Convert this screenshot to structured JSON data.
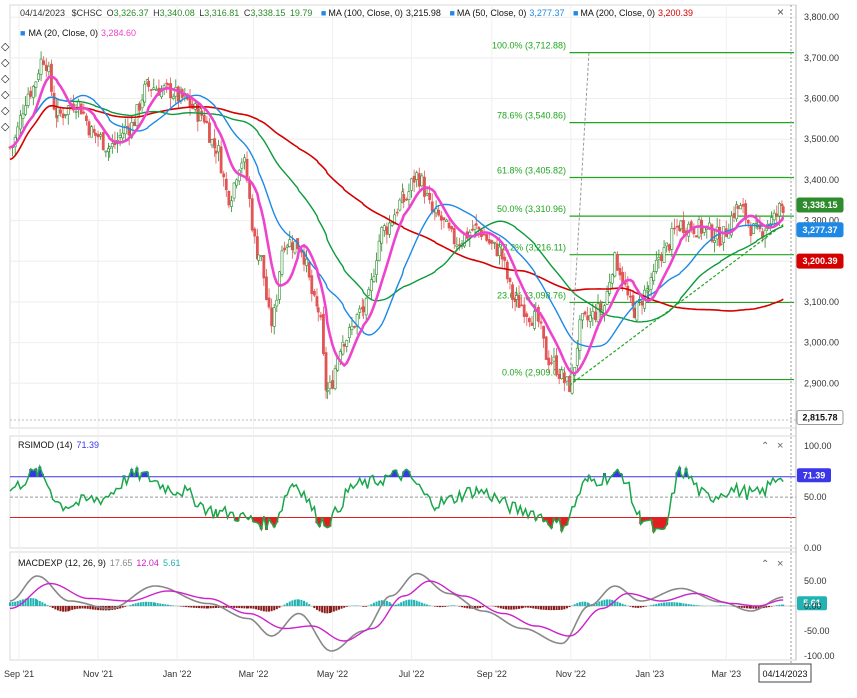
{
  "header": {
    "date": "04/14/2023",
    "symbol": "$CHSC",
    "ohlc": {
      "open_label": "O",
      "open": "3,326.37",
      "high_label": "H",
      "high": "3,340.08",
      "low_label": "L",
      "low": "3,316.81",
      "close_label": "C",
      "close": "3,338.15",
      "change": "19.79"
    },
    "ma_legends": [
      {
        "label": "MA (100, Close, 0)",
        "value": "3,215.98",
        "color": "#111111"
      },
      {
        "label": "MA (50, Close, 0)",
        "value": "3,277.37",
        "color": "#1e88e5"
      },
      {
        "label": "MA (200, Close, 0)",
        "value": "3,200.39",
        "color": "#d50000"
      },
      {
        "label": "MA (20, Close, 0)",
        "value": "3,284.60",
        "color": "#ee44cc"
      }
    ],
    "close_icon": "close-icon"
  },
  "toolbar": {
    "icons": [
      "draw-icon",
      "draw-icon",
      "draw-icon",
      "draw-icon",
      "draw-icon",
      "draw-icon"
    ]
  },
  "colors": {
    "price_up": "#2e8b2e",
    "price_down": "#e25555",
    "ma20": "#ee44cc",
    "ma50": "#1e88e5",
    "ma100": "#0a9a3a",
    "ma200": "#d50000",
    "fib": "#1fa51f",
    "rsi_line": "#1aa64a",
    "rsi_over": "#3b37e8",
    "rsi_under": "#e02020",
    "macd_line": "#888888",
    "signal_line": "#cc22cc",
    "hist_pos": "#21b3b3",
    "hist_neg": "#8b1a1a"
  },
  "chart_data": [
    {
      "type": "candlestick",
      "name": "price",
      "ylim": [
        2790,
        3830
      ],
      "yticks": [
        2900,
        3000,
        3100,
        3200,
        3300,
        3400,
        3500,
        3600,
        3700,
        3800
      ],
      "ytick_labels": [
        "2,900.00",
        "3,000.00",
        "3,100.00",
        "3,200.00",
        "3,300.00",
        "3,400.00",
        "3,500.00",
        "3,600.00",
        "3,700.00",
        "3,800.00"
      ],
      "xlim": [
        "2021-08-25",
        "2023-04-20"
      ],
      "xticks": [
        "2021-09-01",
        "2021-11-01",
        "2022-01-01",
        "2022-03-01",
        "2022-05-01",
        "2022-07-01",
        "2022-09-01",
        "2022-11-01",
        "2023-01-01",
        "2023-03-01"
      ],
      "xtick_labels": [
        "Sep '21",
        "Nov '21",
        "Jan '22",
        "Mar '22",
        "May '22",
        "Jul '22",
        "Sep '22",
        "Nov '22",
        "Jan '23",
        "Mar '23"
      ],
      "close": [
        [
          "2021-08-25",
          3480
        ],
        [
          "2021-09-10",
          3620
        ],
        [
          "2021-09-20",
          3700
        ],
        [
          "2021-10-01",
          3560
        ],
        [
          "2021-10-15",
          3590
        ],
        [
          "2021-10-30",
          3510
        ],
        [
          "2021-11-10",
          3480
        ],
        [
          "2021-11-25",
          3530
        ],
        [
          "2021-12-10",
          3630
        ],
        [
          "2021-12-25",
          3620
        ],
        [
          "2022-01-05",
          3600
        ],
        [
          "2022-01-20",
          3560
        ],
        [
          "2022-01-31",
          3480
        ],
        [
          "2022-02-10",
          3360
        ],
        [
          "2022-02-20",
          3450
        ],
        [
          "2022-03-05",
          3220
        ],
        [
          "2022-03-15",
          3050
        ],
        [
          "2022-03-25",
          3250
        ],
        [
          "2022-04-05",
          3240
        ],
        [
          "2022-04-20",
          3080
        ],
        [
          "2022-04-27",
          2880
        ],
        [
          "2022-05-10",
          3010
        ],
        [
          "2022-05-25",
          3080
        ],
        [
          "2022-06-10",
          3280
        ],
        [
          "2022-06-25",
          3350
        ],
        [
          "2022-07-05",
          3410
        ],
        [
          "2022-07-20",
          3310
        ],
        [
          "2022-08-05",
          3250
        ],
        [
          "2022-08-20",
          3280
        ],
        [
          "2022-09-05",
          3230
        ],
        [
          "2022-09-20",
          3100
        ],
        [
          "2022-10-05",
          3060
        ],
        [
          "2022-10-15",
          2960
        ],
        [
          "2022-10-31",
          2895
        ],
        [
          "2022-11-10",
          3050
        ],
        [
          "2022-11-25",
          3080
        ],
        [
          "2022-12-05",
          3200
        ],
        [
          "2022-12-20",
          3080
        ],
        [
          "2022-12-31",
          3130
        ],
        [
          "2023-01-10",
          3220
        ],
        [
          "2023-01-25",
          3290
        ],
        [
          "2023-02-10",
          3280
        ],
        [
          "2023-02-25",
          3260
        ],
        [
          "2023-03-10",
          3330
        ],
        [
          "2023-03-25",
          3270
        ],
        [
          "2023-04-05",
          3300
        ],
        [
          "2023-04-14",
          3338
        ]
      ],
      "price_tags": [
        {
          "value": "3,338.15",
          "color": "#2e8b2e"
        },
        {
          "value": "3,277.37",
          "color": "#1e88e5"
        },
        {
          "value": "3,200.39",
          "color": "#d50000"
        },
        {
          "value": "2,815.78",
          "color": "#ffffff"
        }
      ],
      "fibonacci": [
        {
          "label": "100.0% (3,712.88)",
          "value": 3712.88
        },
        {
          "label": "78.6% (3,540.86)",
          "value": 3540.86
        },
        {
          "label": "61.8% (3,405.82)",
          "value": 3405.82
        },
        {
          "label": "50.0% (3,310.96)",
          "value": 3310.96
        },
        {
          "label": "38.2% (3,216.11)",
          "value": 3216.11
        },
        {
          "label": "23.6% (3,098.76)",
          "value": 3098.76
        },
        {
          "label": "0.0% (2,909.05)",
          "value": 2909.05
        }
      ]
    },
    {
      "type": "line",
      "name": "RSIMOD (14)",
      "value_label": "71.39",
      "ylim": [
        0,
        110
      ],
      "yticks": [
        0,
        50,
        100
      ],
      "ytick_labels": [
        "0.00",
        "50.00",
        "100.00"
      ],
      "levels": [
        70,
        30
      ],
      "series": [
        [
          "2021-08-25",
          58
        ],
        [
          "2021-09-15",
          74
        ],
        [
          "2021-10-05",
          42
        ],
        [
          "2021-11-01",
          48
        ],
        [
          "2021-12-01",
          72
        ],
        [
          "2022-01-01",
          57
        ],
        [
          "2022-02-01",
          35
        ],
        [
          "2022-03-15",
          24
        ],
        [
          "2022-04-01",
          63
        ],
        [
          "2022-04-25",
          25
        ],
        [
          "2022-05-20",
          62
        ],
        [
          "2022-06-25",
          72
        ],
        [
          "2022-07-20",
          44
        ],
        [
          "2022-08-20",
          56
        ],
        [
          "2022-09-25",
          37
        ],
        [
          "2022-10-25",
          23
        ],
        [
          "2022-11-15",
          66
        ],
        [
          "2022-12-10",
          72
        ],
        [
          "2022-12-25",
          30
        ],
        [
          "2023-01-10",
          13
        ],
        [
          "2023-01-25",
          75
        ],
        [
          "2023-02-15",
          50
        ],
        [
          "2023-03-05",
          57
        ],
        [
          "2023-03-25",
          53
        ],
        [
          "2023-04-14",
          71.39
        ]
      ]
    },
    {
      "type": "line",
      "name": "MACDEXP (12, 26, 9)",
      "values_label": [
        "17.65",
        "12.04",
        "5.61"
      ],
      "ylim": [
        -108,
        108
      ],
      "yticks": [
        -100,
        -50,
        0,
        50
      ],
      "ytick_labels": [
        "-100.00",
        "-50.00",
        "0.00",
        "50.00"
      ],
      "series": [
        {
          "name": "MACD",
          "values": [
            [
              "2021-08-25",
              10
            ],
            [
              "2021-09-15",
              60
            ],
            [
              "2021-10-10",
              10
            ],
            [
              "2021-11-10",
              -5
            ],
            [
              "2021-12-15",
              40
            ],
            [
              "2022-01-25",
              5
            ],
            [
              "2022-02-25",
              -25
            ],
            [
              "2022-03-15",
              -60
            ],
            [
              "2022-04-05",
              -15
            ],
            [
              "2022-04-30",
              -90
            ],
            [
              "2022-05-25",
              -50
            ],
            [
              "2022-06-15",
              20
            ],
            [
              "2022-07-05",
              65
            ],
            [
              "2022-07-30",
              25
            ],
            [
              "2022-08-25",
              -10
            ],
            [
              "2022-09-25",
              -45
            ],
            [
              "2022-10-25",
              -75
            ],
            [
              "2022-11-15",
              0
            ],
            [
              "2022-12-05",
              40
            ],
            [
              "2022-12-25",
              10
            ],
            [
              "2023-01-25",
              35
            ],
            [
              "2023-02-25",
              8
            ],
            [
              "2023-03-20",
              -10
            ],
            [
              "2023-04-14",
              17.65
            ]
          ]
        },
        {
          "name": "Signal",
          "values": [
            [
              "2021-08-25",
              -5
            ],
            [
              "2021-09-25",
              45
            ],
            [
              "2021-10-25",
              15
            ],
            [
              "2021-11-25",
              10
            ],
            [
              "2021-12-25",
              30
            ],
            [
              "2022-01-25",
              15
            ],
            [
              "2022-02-25",
              -15
            ],
            [
              "2022-03-25",
              -45
            ],
            [
              "2022-04-15",
              -40
            ],
            [
              "2022-05-10",
              -70
            ],
            [
              "2022-06-01",
              -45
            ],
            [
              "2022-06-25",
              20
            ],
            [
              "2022-07-15",
              50
            ],
            [
              "2022-08-10",
              20
            ],
            [
              "2022-09-10",
              -15
            ],
            [
              "2022-10-05",
              -40
            ],
            [
              "2022-10-31",
              -60
            ],
            [
              "2022-11-25",
              -5
            ],
            [
              "2022-12-15",
              25
            ],
            [
              "2023-01-10",
              10
            ],
            [
              "2023-02-05",
              25
            ],
            [
              "2023-03-05",
              5
            ],
            [
              "2023-03-25",
              0
            ],
            [
              "2023-04-14",
              12.04
            ]
          ]
        }
      ]
    }
  ],
  "panels": {
    "rsi": {
      "title": "RSIMOD (14)",
      "value": "71.39"
    },
    "macd": {
      "title": "MACDEXP (12, 26, 9)",
      "v1": "17.65",
      "v2": "12.04",
      "v3": "5.61"
    }
  },
  "footer": {
    "date_badge": "04/14/2023"
  }
}
